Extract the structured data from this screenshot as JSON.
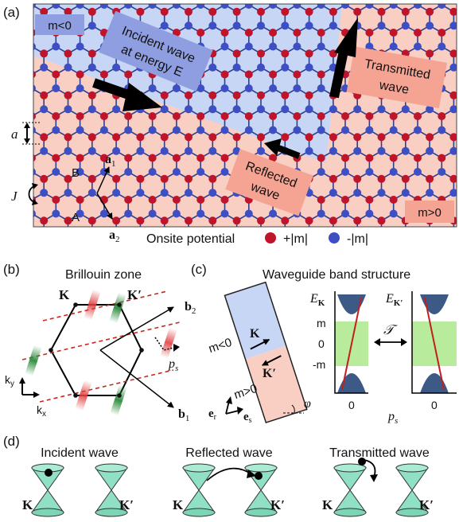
{
  "panels": {
    "a": "(a)",
    "b": "(b)",
    "c": "(c)",
    "d": "(d)"
  },
  "panel_a": {
    "region_left": "m<0",
    "region_right": "m>0",
    "incident_label_1": "Incident wave",
    "incident_label_2": "at energy E",
    "transmitted_label_1": "Transmitted",
    "transmitted_label_2": "wave",
    "reflected_label_1": "Reflected",
    "reflected_label_2": "wave",
    "lattice_const": "a",
    "hopping": "J",
    "sublattice_b": "B",
    "sublattice_a": "A",
    "vec_a1": "a",
    "vec_a1_sub": "1",
    "vec_a2": "a",
    "vec_a2_sub": "2",
    "legend_title": "Onsite potential",
    "legend_plus": "+|m|",
    "legend_minus": "-|m|",
    "colors": {
      "minus_region": "#c7d6f5",
      "plus_region": "#f9cfc3",
      "site_red": "#c0142a",
      "site_blue": "#3e4fc4",
      "bond": "#2b3f8f"
    }
  },
  "panel_b": {
    "title": "Brillouin zone",
    "K": "K",
    "Kp": "K′",
    "b1": "b",
    "b1_sub": "1",
    "b2": "b",
    "b2_sub": "2",
    "ps": "p",
    "ps_sub": "s",
    "ky": "k",
    "ky_sub": "y",
    "kx": "k",
    "kx_sub": "x"
  },
  "panel_c": {
    "title": "Waveguide band structure",
    "m_neg": "m<0",
    "m_pos": "m>0",
    "K": "K",
    "Kp": "K′",
    "er": "e",
    "er_sub": "r",
    "es": "e",
    "es_sub": "s",
    "phi": "φ",
    "EK": "E",
    "EK_sub": "K",
    "EKp": "E",
    "EKp_sub": "K′",
    "tick_m": "m",
    "tick_0": "0",
    "tick_negm": "-m",
    "T": "𝒯",
    "xtick_left": "0",
    "xtick_right": "0",
    "ps": "p",
    "ps_sub": "s"
  },
  "panel_d": {
    "incident": "Incident wave",
    "reflected": "Reflected wave",
    "transmitted": "Transmitted wave",
    "K": "K",
    "Kp": "K′"
  }
}
